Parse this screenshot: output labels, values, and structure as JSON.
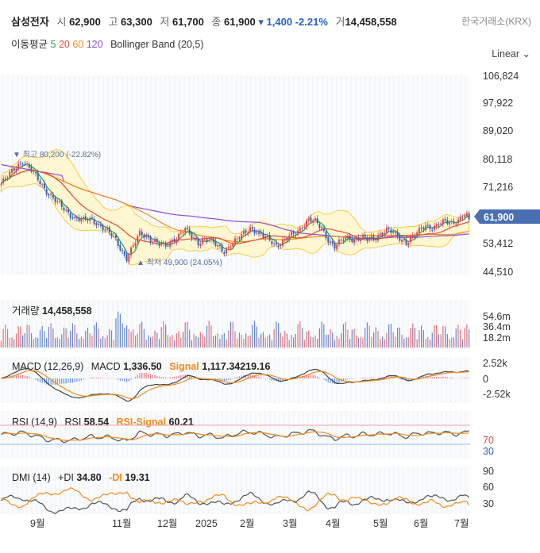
{
  "header": {
    "name": "삼성전자",
    "open_label": "시",
    "open": "62,900",
    "high_label": "고",
    "high": "63,300",
    "low_label": "저",
    "low": "61,700",
    "close_label": "종",
    "close": "61,900",
    "change": "▾ 1,400",
    "change_pct": "-2.21%",
    "volume_label": "거",
    "volume": "14,458,558",
    "exchange": "한국거래소(KRX)"
  },
  "moving_average": {
    "label": "이동평균",
    "periods": [
      "5",
      "20",
      "60",
      "120"
    ],
    "bollinger": "Bollinger Band (20,5)"
  },
  "scale_button": "Linear",
  "price_axis": [
    "106,824",
    "97,922",
    "89,020",
    "80,118",
    "71,216",
    "53,412",
    "44,510"
  ],
  "current_price": "61,900",
  "markers": {
    "high": "▼ 최고  80,200 (-22.82%)",
    "low": "▲ 최저  49,900 (24.05%)"
  },
  "volume_panel": {
    "label": "거래량",
    "value": "14,458,558",
    "axis": [
      "54.6m",
      "36.4m",
      "18.2m"
    ]
  },
  "macd_panel": {
    "label": "MACD (12,26,9)",
    "macd_label": "MACD",
    "macd_value": "1,336.50",
    "signal_label": "Signal",
    "signal_value": "1,117.34219.16",
    "axis": [
      "2.52k",
      "0",
      "-2.52k"
    ]
  },
  "rsi_panel": {
    "label": "RSI (14,9)",
    "rsi_label": "RSI",
    "rsi_value": "58.54",
    "signal_label": "RSI-Signal",
    "signal_value": "60.21",
    "axis": [
      "70",
      "30"
    ]
  },
  "dmi_panel": {
    "label": "DMI (14)",
    "pdi_label": "+DI",
    "pdi_value": "34.80",
    "mdi_label": "-DI",
    "mdi_value": "19.31",
    "axis": [
      "90",
      "60",
      "30"
    ]
  },
  "x_axis": [
    "9월",
    "11월",
    "12월",
    "2025",
    "2월",
    "3월",
    "4월",
    "5월",
    "6월",
    "7월"
  ],
  "colors": {
    "up": "#e0454b",
    "down": "#2d63c8",
    "ma5": "#2ea043",
    "ma20": "#e14b3b",
    "ma60": "#f08c1e",
    "ma120": "#8a4fd8",
    "band_fill": "#fff6d2",
    "band_line": "#f2cf48",
    "price_badge": "#4a6fb3"
  },
  "chart_data": {
    "type": "candlestick",
    "period": "daily, 2024-08 to 2025-07",
    "y_axis_ticks": [
      106824,
      97922,
      89020,
      80118,
      71216,
      53412,
      44510
    ],
    "ylim": [
      40000,
      112000
    ],
    "last": {
      "open": 62900,
      "high": 63300,
      "low": 61700,
      "close": 61900,
      "volume": 14458558
    },
    "high_point": 80200,
    "low_point": 49900,
    "close_path": [
      [
        0,
        73000
      ],
      [
        4,
        76000
      ],
      [
        7,
        78500
      ],
      [
        10,
        80200
      ],
      [
        14,
        77000
      ],
      [
        18,
        73500
      ],
      [
        22,
        70000
      ],
      [
        26,
        67000
      ],
      [
        30,
        64500
      ],
      [
        34,
        62500
      ],
      [
        38,
        61500
      ],
      [
        42,
        62000
      ],
      [
        46,
        60000
      ],
      [
        50,
        57500
      ],
      [
        53,
        55500
      ],
      [
        56,
        52000
      ],
      [
        58,
        49900
      ],
      [
        61,
        53500
      ],
      [
        64,
        57500
      ],
      [
        67,
        56800
      ],
      [
        70,
        55500
      ],
      [
        73,
        54000
      ],
      [
        76,
        53500
      ],
      [
        79,
        55500
      ],
      [
        82,
        57000
      ],
      [
        85,
        58800
      ],
      [
        88,
        56500
      ],
      [
        91,
        54800
      ],
      [
        94,
        56000
      ],
      [
        97,
        55000
      ],
      [
        100,
        53500
      ],
      [
        103,
        52200
      ],
      [
        106,
        54000
      ],
      [
        109,
        55500
      ],
      [
        112,
        57500
      ],
      [
        115,
        59500
      ],
      [
        118,
        58000
      ],
      [
        121,
        56500
      ],
      [
        124,
        55500
      ],
      [
        127,
        54000
      ],
      [
        130,
        55000
      ],
      [
        133,
        56500
      ],
      [
        136,
        57500
      ],
      [
        139,
        60000
      ],
      [
        142,
        62000
      ],
      [
        145,
        61000
      ],
      [
        148,
        59000
      ],
      [
        151,
        55800
      ],
      [
        154,
        53500
      ],
      [
        157,
        55000
      ],
      [
        160,
        56200
      ],
      [
        163,
        55800
      ],
      [
        166,
        56500
      ],
      [
        169,
        55500
      ],
      [
        172,
        56000
      ],
      [
        175,
        57500
      ],
      [
        178,
        58800
      ],
      [
        181,
        57500
      ],
      [
        184,
        56000
      ],
      [
        187,
        55000
      ],
      [
        190,
        56500
      ],
      [
        193,
        58200
      ],
      [
        196,
        60000
      ],
      [
        199,
        59500
      ],
      [
        202,
        60500
      ],
      [
        205,
        61000
      ],
      [
        208,
        60800
      ],
      [
        211,
        62000
      ],
      [
        214,
        63500
      ],
      [
        216,
        61900
      ]
    ],
    "volume_axis": [
      18.2,
      36.4,
      54.6
    ],
    "macd": {
      "macd": 1336.5,
      "signal": 1117.34,
      "axis": [
        2520,
        0,
        -2520
      ]
    },
    "rsi": {
      "rsi": 58.54,
      "signal": 60.21,
      "levels": [
        70,
        30
      ]
    },
    "dmi": {
      "plus_di": 34.8,
      "minus_di": 19.31,
      "axis": [
        90,
        60,
        30
      ]
    }
  }
}
